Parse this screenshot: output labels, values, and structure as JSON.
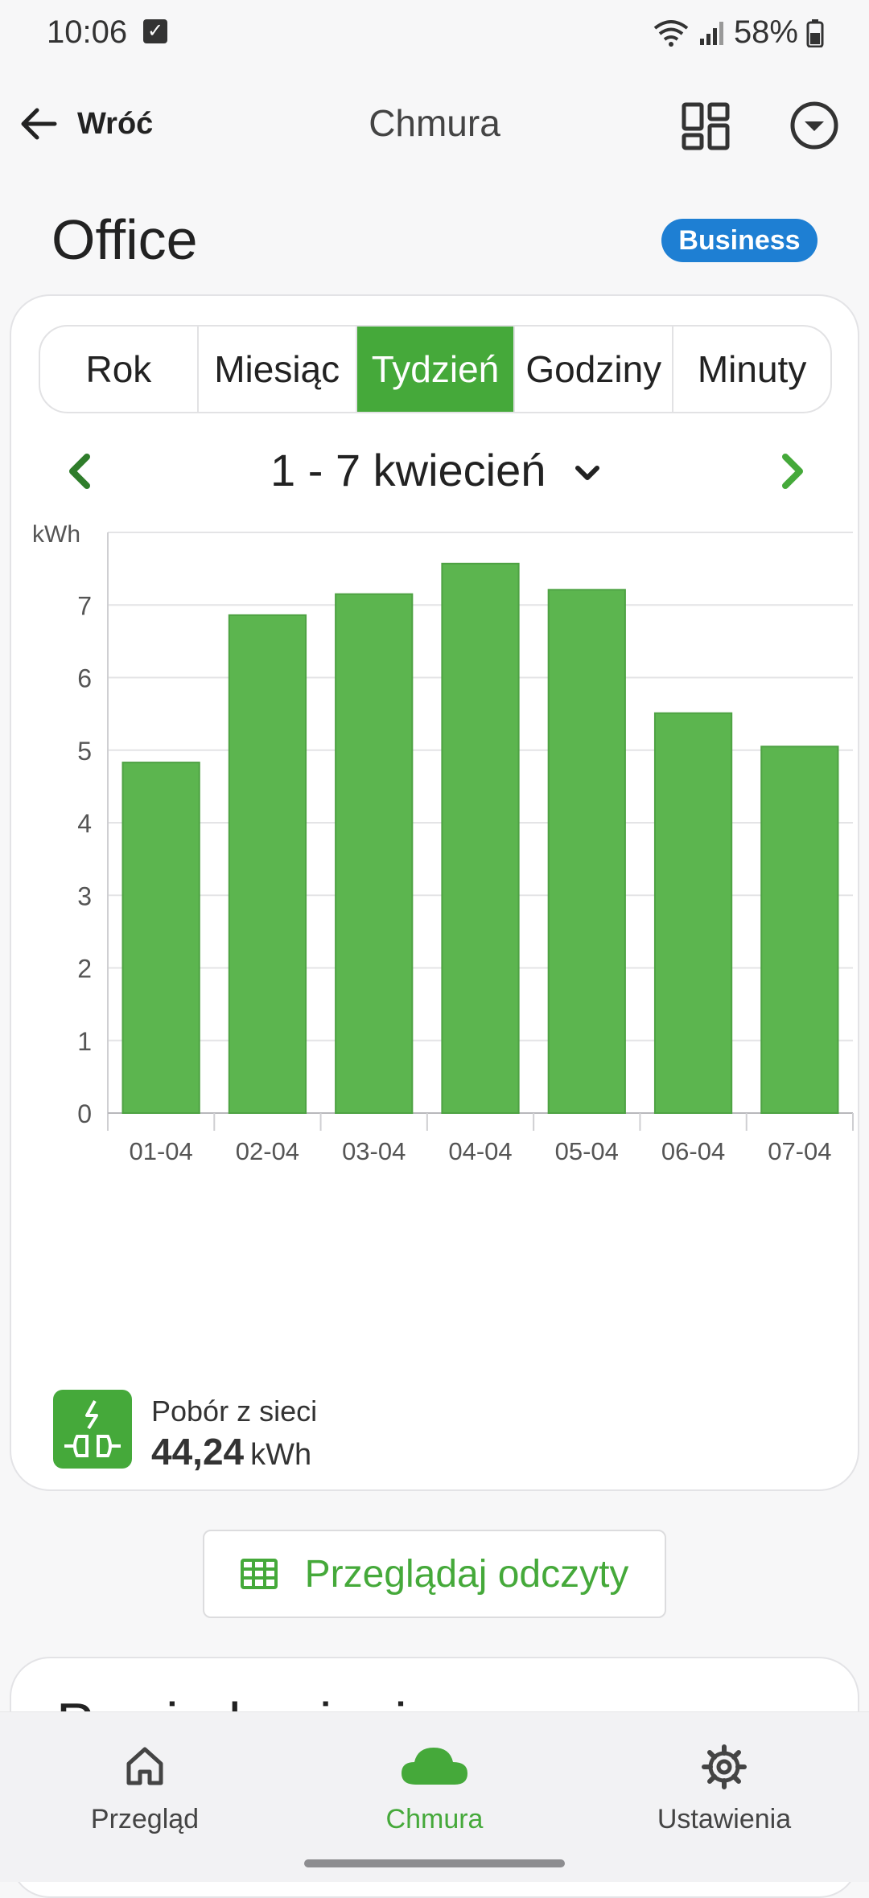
{
  "status_bar": {
    "time": "10:06",
    "battery": "58%"
  },
  "app_bar": {
    "back_label": "Wróć",
    "title": "Chmura"
  },
  "page": {
    "title": "Office",
    "badge": "Business"
  },
  "tabs": [
    {
      "label": "Rok",
      "active": false
    },
    {
      "label": "Miesiąc",
      "active": false
    },
    {
      "label": "Tydzień",
      "active": true
    },
    {
      "label": "Godziny",
      "active": false
    },
    {
      "label": "Minuty",
      "active": false
    }
  ],
  "period": {
    "label": "1 - 7 kwiecień"
  },
  "chart_data": {
    "type": "bar",
    "ylabel": "kWh",
    "categories": [
      "01-04",
      "02-04",
      "03-04",
      "04-04",
      "05-04",
      "06-04",
      "07-04"
    ],
    "values": [
      4.83,
      6.86,
      7.15,
      7.57,
      7.21,
      5.51,
      5.05
    ],
    "ylim": [
      0,
      8
    ],
    "yticks": [
      0,
      1,
      2,
      3,
      4,
      5,
      6,
      7
    ],
    "grid": true,
    "color": "#5cb54f"
  },
  "summary": {
    "label": "Pobór z sieci",
    "value": "44,24",
    "unit": "kWh"
  },
  "browse_button": {
    "label": "Przeglądaj odczyty"
  },
  "section2": {
    "title": "Powiadomienia"
  },
  "bottom_nav": [
    {
      "label": "Przegląd",
      "icon": "home-icon",
      "active": false
    },
    {
      "label": "Chmura",
      "icon": "cloud-icon",
      "active": true
    },
    {
      "label": "Ustawienia",
      "icon": "gear-icon",
      "active": false
    }
  ],
  "colors": {
    "accent": "#45a93a",
    "badge": "#1e7fd3"
  }
}
